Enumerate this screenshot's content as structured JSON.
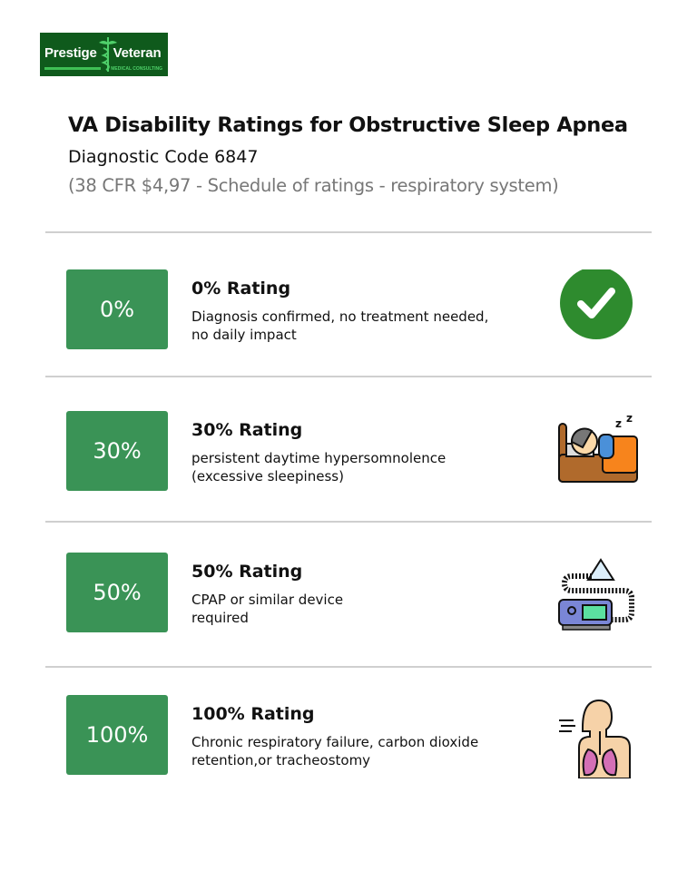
{
  "logo": {
    "brand_left": "Prestige",
    "brand_right": "Veteran",
    "tagline": "MEDICAL CONSULTING"
  },
  "header": {
    "title": "VA Disability Ratings for Obstructive Sleep Apnea",
    "code": "Diagnostic Code 6847",
    "reference": "(38 CFR $4,97 - Schedule of ratings - respiratory system)"
  },
  "colors": {
    "box": "#3a9356",
    "check": "#2e8b2e",
    "logo_bg": "#0f5a1c"
  },
  "ratings": [
    {
      "badge": "0%",
      "title": "0% Rating",
      "lines": [
        "Diagnosis confirmed, no treatment needed,",
        "no daily impact"
      ],
      "icon": "check-circle-icon"
    },
    {
      "badge": "30%",
      "title": "30% Rating",
      "lines": [
        "persistent daytime hypersomnolence",
        "(excessive sleepiness)"
      ],
      "icon": "sleeping-person-icon"
    },
    {
      "badge": "50%",
      "title": "50% Rating",
      "lines": [
        "CPAP or similar device",
        "required"
      ],
      "icon": "cpap-machine-icon"
    },
    {
      "badge": "100%",
      "title": "100% Rating",
      "lines": [
        "Chronic respiratory failure, carbon dioxide",
        "retention,or tracheostomy"
      ],
      "icon": "respiratory-system-icon"
    }
  ]
}
